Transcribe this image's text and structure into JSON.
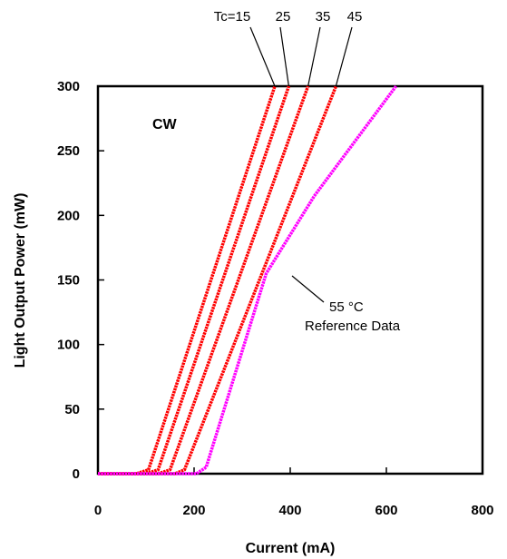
{
  "chart_data": {
    "type": "line",
    "xlabel": "Current (mA)",
    "ylabel": "Light Output Power (mW)",
    "xlim": [
      0,
      800
    ],
    "ylim": [
      0,
      300
    ],
    "x_ticks": [
      "0",
      "200",
      "400",
      "600",
      "800"
    ],
    "y_ticks": [
      "0",
      "50",
      "100",
      "150",
      "200",
      "250",
      "300"
    ],
    "grid": false,
    "mode_label": "CW",
    "series": [
      {
        "label": "Tc=15",
        "color": "#ff0000",
        "x": [
          0,
          80,
          105,
          368
        ],
        "y": [
          0,
          0,
          3,
          300
        ]
      },
      {
        "label": "25",
        "color": "#ff0000",
        "x": [
          0,
          100,
          125,
          397
        ],
        "y": [
          0,
          0,
          3,
          300
        ]
      },
      {
        "label": "35",
        "color": "#ff0000",
        "x": [
          0,
          125,
          150,
          437
        ],
        "y": [
          0,
          0,
          3,
          300
        ]
      },
      {
        "label": "45",
        "color": "#ff0000",
        "x": [
          0,
          160,
          180,
          495
        ],
        "y": [
          0,
          0,
          3,
          300
        ]
      },
      {
        "label": "55 °C",
        "color": "#ff00ff",
        "x": [
          0,
          205,
          225,
          350,
          450,
          550,
          620
        ],
        "y": [
          0,
          0,
          5,
          155,
          215,
          265,
          300
        ]
      }
    ],
    "reference_annotation": [
      "55 °C",
      "Reference Data"
    ]
  }
}
